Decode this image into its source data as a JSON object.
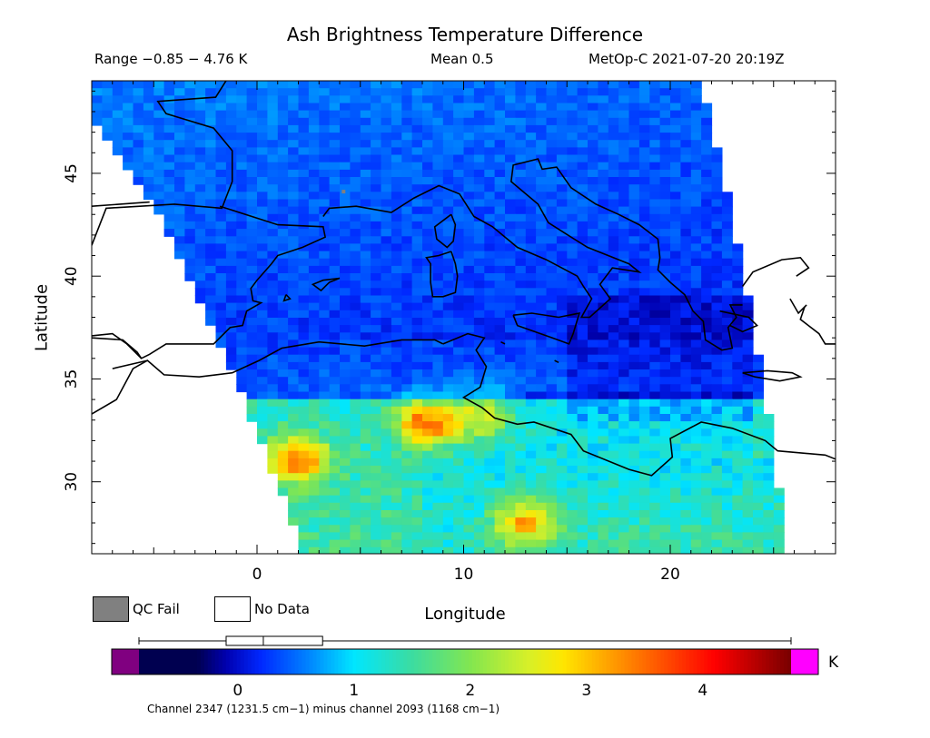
{
  "chart_data": {
    "type": "heatmap",
    "title": "Ash Brightness Temperature Difference",
    "stats": {
      "range_text": "Range −0.85 − 4.76 K",
      "mean_text": "Mean 0.5",
      "satellite_time": "MetOp-C 2021-07-20 20:19Z"
    },
    "xlabel": "Longitude",
    "ylabel": "Latitude",
    "xlim": [
      -8,
      28
    ],
    "ylim": [
      26.5,
      49.5
    ],
    "x_ticks": [
      0,
      10,
      20
    ],
    "y_ticks": [
      30,
      35,
      40,
      45
    ],
    "swath": {
      "left_edge": [
        [
          -8,
          47.5
        ],
        [
          -5,
          43.5
        ],
        [
          -1,
          35
        ],
        [
          2.3,
          26.5
        ]
      ],
      "right_edge": [
        [
          21.5,
          49.5
        ],
        [
          23,
          43
        ],
        [
          24.5,
          35
        ],
        [
          25.7,
          26.5
        ]
      ]
    },
    "hotspots": [
      {
        "lon": 8.3,
        "lat": 32.8,
        "value": 3.6
      },
      {
        "lon": 2.0,
        "lat": 31.1,
        "value": 3.3
      },
      {
        "lon": 13.0,
        "lat": 28.0,
        "value": 3.1
      },
      {
        "lon": 11.0,
        "lat": 33.2,
        "value": 2.6
      }
    ],
    "colorbar": {
      "min": -0.85,
      "max": 4.76,
      "ticks": [
        0,
        1,
        2,
        3,
        4
      ],
      "unit": "K",
      "underflow_color": "#800080",
      "overflow_color": "#ff00ff",
      "box_stats": {
        "min": -0.85,
        "q1": -0.1,
        "median": 0.22,
        "q3": 0.73,
        "max": 4.76
      }
    },
    "legend": {
      "qc_fail": "QC Fail",
      "no_data": "No Data",
      "qc_fail_color": "#808080",
      "no_data_color": "#ffffff"
    },
    "footnote": "Channel 2347 (1231.5 cm−1) minus channel 2093 (1168 cm−1)"
  }
}
